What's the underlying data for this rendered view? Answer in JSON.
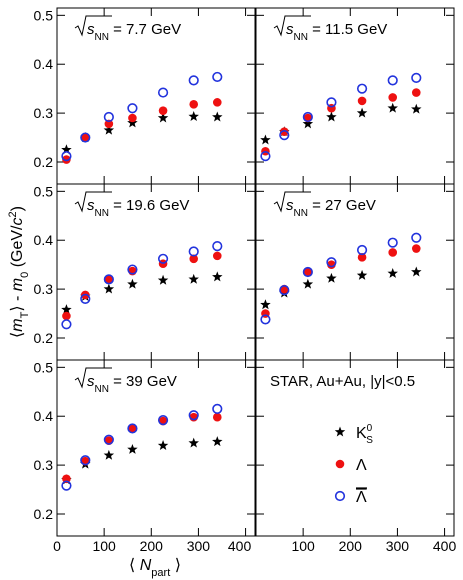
{
  "axes": {
    "xlim": [
      0,
      420
    ],
    "xticks": [
      0,
      100,
      200,
      300,
      400
    ],
    "ylim": [
      0.155,
      0.515
    ],
    "yticks": [
      0.2,
      0.3,
      0.4,
      0.5
    ],
    "xlabel": [
      "⟨ ",
      "N",
      "part",
      " ⟩"
    ],
    "ylabel": [
      "⟨",
      "m",
      "T",
      "⟩ - ",
      "m",
      "0",
      " (GeV/",
      "c",
      "2",
      ")"
    ]
  },
  "legend": {
    "title": "STAR, Au+Au, |y|<0.5",
    "entries": [
      {
        "name": "K",
        "sup": "0",
        "sub": "S",
        "color": "#000000",
        "marker": "star"
      },
      {
        "name": "Λ",
        "color": "#ee1111",
        "marker": "circle"
      },
      {
        "name": "Λ",
        "overline": true,
        "color": "#2233dd",
        "marker": "open-circle"
      }
    ]
  },
  "chart_data": [
    {
      "type": "scatter",
      "title_var": "s",
      "title_sub": "NN",
      "title": " = 7.7 GeV",
      "x": [
        20,
        60,
        110,
        160,
        225,
        290,
        340
      ],
      "series": [
        {
          "values": [
            0.225,
            0.25,
            0.265,
            0.28,
            0.29,
            0.293,
            0.292
          ]
        },
        {
          "values": [
            0.205,
            0.25,
            0.278,
            0.29,
            0.305,
            0.318,
            0.322
          ]
        },
        {
          "values": [
            0.212,
            0.25,
            0.292,
            0.31,
            0.342,
            0.367,
            0.374
          ]
        }
      ]
    },
    {
      "type": "scatter",
      "title_var": "s",
      "title_sub": "NN",
      "title": " = 11.5 GeV",
      "x": [
        20,
        60,
        110,
        160,
        225,
        290,
        340
      ],
      "series": [
        {
          "values": [
            0.245,
            0.262,
            0.278,
            0.292,
            0.3,
            0.31,
            0.308
          ]
        },
        {
          "values": [
            0.222,
            0.262,
            0.29,
            0.31,
            0.325,
            0.332,
            0.342
          ]
        },
        {
          "values": [
            0.212,
            0.255,
            0.292,
            0.322,
            0.35,
            0.367,
            0.372
          ]
        }
      ]
    },
    {
      "type": "scatter",
      "title_var": "s",
      "title_sub": "NN",
      "title": " = 19.6 GeV",
      "x": [
        20,
        60,
        110,
        160,
        225,
        290,
        340
      ],
      "series": [
        {
          "values": [
            0.258,
            0.285,
            0.3,
            0.31,
            0.318,
            0.32,
            0.325
          ]
        },
        {
          "values": [
            0.245,
            0.288,
            0.32,
            0.337,
            0.352,
            0.362,
            0.368
          ]
        },
        {
          "values": [
            0.228,
            0.28,
            0.32,
            0.34,
            0.362,
            0.377,
            0.388
          ]
        }
      ]
    },
    {
      "type": "scatter",
      "title_var": "s",
      "title_sub": "NN",
      "title": " = 27 GeV",
      "x": [
        20,
        60,
        110,
        160,
        225,
        290,
        340
      ],
      "series": [
        {
          "values": [
            0.268,
            0.292,
            0.31,
            0.322,
            0.328,
            0.332,
            0.335
          ]
        },
        {
          "values": [
            0.25,
            0.3,
            0.335,
            0.35,
            0.365,
            0.375,
            0.383
          ]
        },
        {
          "values": [
            0.238,
            0.298,
            0.335,
            0.355,
            0.38,
            0.395,
            0.405
          ]
        }
      ]
    },
    {
      "type": "scatter",
      "title_var": "s",
      "title_sub": "NN",
      "title": " = 39 GeV",
      "x": [
        20,
        60,
        110,
        160,
        225,
        290,
        340
      ],
      "series": [
        {
          "values": [
            0.27,
            0.302,
            0.32,
            0.332,
            0.34,
            0.345,
            0.348
          ]
        },
        {
          "values": [
            0.272,
            0.308,
            0.35,
            0.375,
            0.39,
            0.398,
            0.398
          ]
        },
        {
          "values": [
            0.258,
            0.31,
            0.352,
            0.375,
            0.392,
            0.402,
            0.415
          ]
        }
      ]
    }
  ]
}
